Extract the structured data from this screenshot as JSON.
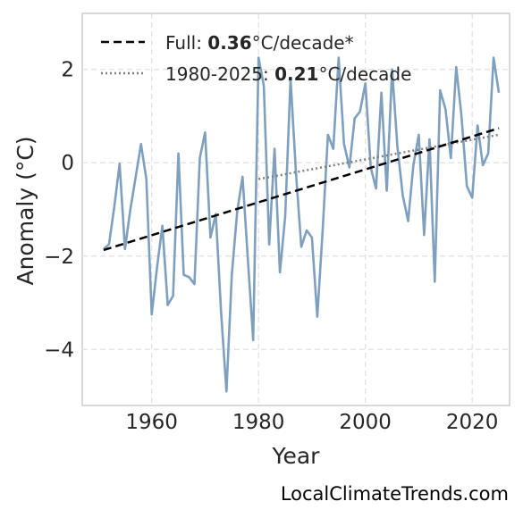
{
  "chart_data": {
    "type": "line",
    "title": "",
    "xlabel": "Year",
    "ylabel": "Anomaly (°C)",
    "xlim": [
      1947,
      2027
    ],
    "ylim": [
      -5.2,
      3.2
    ],
    "x_ticks": [
      1960,
      1980,
      2000,
      2020
    ],
    "y_ticks": [
      -4,
      -2,
      0,
      2
    ],
    "y_tick_labels": [
      "−4",
      "−2",
      "0",
      "2"
    ],
    "grid": true,
    "legend_position": "top-left",
    "series": [
      {
        "values_x": [
          1951,
          1952,
          1953,
          1954,
          1955,
          1956,
          1957,
          1958,
          1959,
          1960,
          1961,
          1962,
          1963,
          1964,
          1965,
          1966,
          1967,
          1968,
          1969,
          1970,
          1971,
          1972,
          1973,
          1974,
          1975,
          1976,
          1977,
          1978,
          1979,
          1980,
          1981,
          1982,
          1983,
          1984,
          1985,
          1986,
          1987,
          1988,
          1989,
          1990,
          1991,
          1992,
          1993,
          1994,
          1995,
          1996,
          1997,
          1998,
          1999,
          2000,
          2001,
          2002,
          2003,
          2004,
          2005,
          2006,
          2007,
          2008,
          2009,
          2010,
          2011,
          2012,
          2013,
          2014,
          2015,
          2016,
          2017,
          2018,
          2019,
          2020,
          2021,
          2022,
          2023,
          2024,
          2025
        ],
        "values": [
          -1.85,
          -1.75,
          -0.95,
          -0.02,
          -1.85,
          -1.0,
          -0.3,
          0.4,
          -0.35,
          -3.25,
          -2.25,
          -1.35,
          -3.05,
          -2.85,
          0.2,
          -2.4,
          -2.45,
          -2.6,
          0.1,
          0.65,
          -1.6,
          -1.1,
          -3.2,
          -4.9,
          -2.4,
          -1.05,
          -0.3,
          -2.05,
          -3.8,
          2.25,
          1.65,
          -1.75,
          0.3,
          -2.35,
          -1.15,
          1.8,
          -0.2,
          -1.8,
          -1.45,
          -1.6,
          -3.3,
          -1.45,
          0.6,
          0.3,
          2.25,
          0.4,
          -0.1,
          0.95,
          1.1,
          1.7,
          -0.1,
          -0.55,
          1.5,
          -0.6,
          2.0,
          0.35,
          -0.7,
          -1.25,
          -0.05,
          0.6,
          -1.55,
          0.5,
          -2.55,
          1.55,
          1.15,
          0.1,
          2.05,
          1.0,
          -0.5,
          -0.75,
          0.8,
          -0.05,
          0.2,
          2.25,
          1.5
        ],
        "color": "#7f9fbf",
        "style": "solid"
      },
      {
        "name": "Full",
        "x": [
          1951,
          2025
        ],
        "values": [
          -1.87,
          0.74
        ],
        "color": "#000000",
        "style": "dashed",
        "trend_value": "0.36",
        "trend_unit": "°C/decade*"
      },
      {
        "name": "1980-2025",
        "x": [
          1980,
          2025
        ],
        "values": [
          -0.35,
          0.6
        ],
        "color": "#808080",
        "style": "dotted",
        "trend_value": "0.21",
        "trend_unit": "°C/decade"
      }
    ]
  },
  "legend": {
    "full_prefix": "Full: ",
    "full_value": "0.36",
    "full_unit": "°C/decade*",
    "recent_prefix": "1980-2025: ",
    "recent_value": "0.21",
    "recent_unit": "°C/decade"
  },
  "source_text": "LocalClimateTrends.com"
}
